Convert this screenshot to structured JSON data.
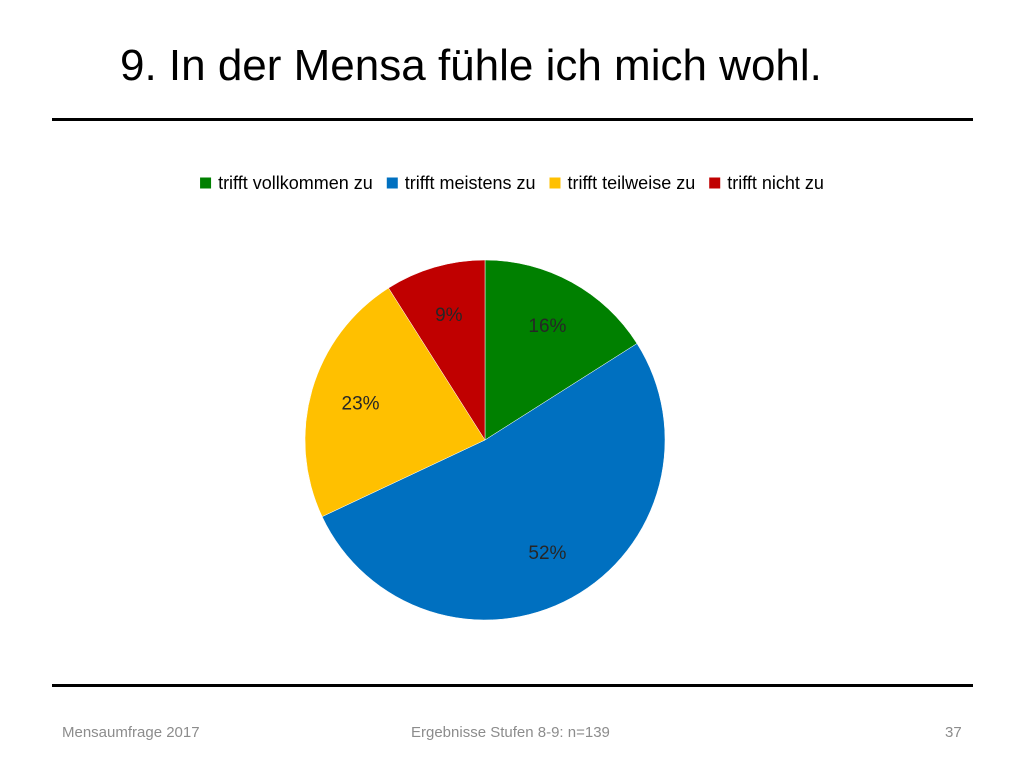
{
  "slide": {
    "title": "9. In der Mensa fühle ich mich wohl."
  },
  "footer": {
    "left": "Mensaumfrage 2017",
    "center": "Ergebnisse Stufen 8-9: n=139",
    "page_number": "37"
  },
  "chart_data": {
    "type": "pie",
    "title": "",
    "legend_position": "top",
    "slices": [
      {
        "name": "trifft vollkommen zu",
        "value": 16,
        "label": "16%",
        "color": "#008000"
      },
      {
        "name": "trifft meistens zu",
        "value": 52,
        "label": "52%",
        "color": "#0070C0"
      },
      {
        "name": "trifft teilweise zu",
        "value": 23,
        "label": "23%",
        "color": "#FFC000"
      },
      {
        "name": "trifft nicht zu",
        "value": 9,
        "label": "9%",
        "color": "#C00000"
      }
    ]
  }
}
